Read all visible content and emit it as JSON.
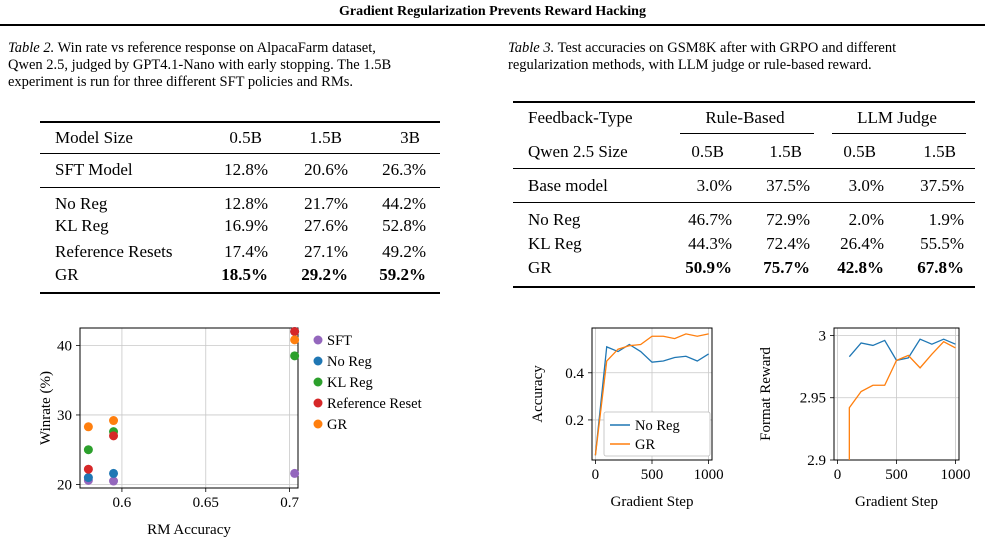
{
  "header": {
    "title": "Gradient Regularization Prevents Reward Hacking"
  },
  "table2": {
    "label": "Table 2.",
    "caption_rest": "Win rate vs reference response on AlpacaFarm dataset,",
    "caption_line2": "Qwen 2.5, judged by GPT4.1-Nano with early stopping. The 1.5B",
    "caption_line3": "experiment is run for three different SFT policies and RMs.",
    "head": [
      "Model Size",
      "0.5B",
      "1.5B",
      "3B"
    ],
    "sft": [
      "SFT Model",
      "12.8%",
      "20.6%",
      "26.3%"
    ],
    "rows": [
      [
        "No Reg",
        "12.8%",
        "21.7%",
        "44.2%"
      ],
      [
        "KL Reg",
        "16.9%",
        "27.6%",
        "52.8%"
      ],
      [
        "Reference Resets",
        "17.4%",
        "27.1%",
        "49.2%"
      ],
      [
        "GR",
        "18.5%",
        "29.2%",
        "59.2%"
      ]
    ]
  },
  "table3": {
    "label": "Table 3.",
    "caption_rest": "Test accuracies on GSM8K after with GRPO and different",
    "caption_line2": "regularization methods, with LLM judge or rule-based reward.",
    "group_head": [
      "Feedback-Type",
      "Rule-Based",
      "LLM Judge"
    ],
    "sub_head": [
      "Qwen 2.5 Size",
      "0.5B",
      "1.5B",
      "0.5B",
      "1.5B"
    ],
    "base": [
      "Base model",
      "3.0%",
      "37.5%",
      "3.0%",
      "37.5%"
    ],
    "rows": [
      [
        "No Reg",
        "46.7%",
        "72.9%",
        "2.0%",
        "1.9%"
      ],
      [
        "KL Reg",
        "44.3%",
        "72.4%",
        "26.4%",
        "55.5%"
      ],
      [
        "GR",
        "50.9%",
        "75.7%",
        "42.8%",
        "67.8%"
      ]
    ]
  },
  "chart_data": [
    {
      "type": "scatter",
      "xlabel": "RM Accuracy",
      "ylabel": "Winrate (%)",
      "xlim": [
        0.575,
        0.705
      ],
      "ylim": [
        19.5,
        42.5
      ],
      "xticks": [
        0.6,
        0.65,
        0.7
      ],
      "xtick_labels": [
        "0.6",
        "0.65",
        "0.7"
      ],
      "yticks": [
        20,
        30,
        40
      ],
      "ytick_labels": [
        "20",
        "30",
        "40"
      ],
      "grid": true,
      "legend": "right",
      "series": [
        {
          "name": "SFT",
          "color": "#9467bd",
          "points": [
            [
              0.58,
              20.6
            ],
            [
              0.595,
              20.5
            ],
            [
              0.703,
              21.6
            ]
          ]
        },
        {
          "name": "No Reg",
          "color": "#1f77b4",
          "points": [
            [
              0.58,
              21.0
            ],
            [
              0.595,
              21.6
            ],
            [
              0.703,
              42.0
            ]
          ]
        },
        {
          "name": "KL Reg",
          "color": "#2ca02c",
          "points": [
            [
              0.58,
              25.0
            ],
            [
              0.595,
              27.6
            ],
            [
              0.703,
              38.5
            ]
          ]
        },
        {
          "name": "Reference Reset",
          "color": "#d62728",
          "points": [
            [
              0.58,
              22.2
            ],
            [
              0.595,
              27.0
            ],
            [
              0.703,
              42.0
            ]
          ]
        },
        {
          "name": "GR",
          "color": "#ff7f0e",
          "points": [
            [
              0.58,
              28.3
            ],
            [
              0.595,
              29.2
            ],
            [
              0.703,
              40.8
            ]
          ]
        }
      ]
    },
    {
      "type": "line",
      "xlabel": "Gradient Step",
      "ylabel": "Accuracy",
      "xlim": [
        -30,
        1030
      ],
      "ylim": [
        0.03,
        0.59
      ],
      "xticks": [
        0,
        500,
        1000
      ],
      "xtick_labels": [
        "0",
        "500",
        "1000"
      ],
      "yticks": [
        0.2,
        0.4
      ],
      "ytick_labels": [
        "0.2",
        "0.4"
      ],
      "grid": true,
      "legend": "bottom-right",
      "series": [
        {
          "name": "No Reg",
          "color": "#1f77b4",
          "x": [
            0,
            100,
            200,
            300,
            400,
            500,
            600,
            700,
            800,
            900,
            1000
          ],
          "y": [
            0.05,
            0.51,
            0.49,
            0.52,
            0.49,
            0.445,
            0.45,
            0.465,
            0.47,
            0.45,
            0.48
          ]
        },
        {
          "name": "GR",
          "color": "#ff7f0e",
          "x": [
            0,
            100,
            200,
            300,
            400,
            500,
            600,
            700,
            800,
            900,
            1000
          ],
          "y": [
            0.05,
            0.45,
            0.5,
            0.515,
            0.52,
            0.555,
            0.555,
            0.545,
            0.565,
            0.555,
            0.565
          ]
        }
      ]
    },
    {
      "type": "line",
      "xlabel": "Gradient Step",
      "ylabel": "Format Reward",
      "xlim": [
        -30,
        1030
      ],
      "ylim": [
        2.9,
        3.006
      ],
      "xticks": [
        0,
        500,
        1000
      ],
      "xtick_labels": [
        "0",
        "500",
        "1000"
      ],
      "yticks": [
        2.9,
        2.95,
        3.0
      ],
      "ytick_labels": [
        "2.9",
        "2.95",
        "3"
      ],
      "grid": true,
      "series": [
        {
          "name": "No Reg",
          "color": "#1f77b4",
          "x": [
            100,
            200,
            300,
            400,
            500,
            600,
            700,
            800,
            900,
            1000
          ],
          "y": [
            2.983,
            2.994,
            2.992,
            2.996,
            2.98,
            2.982,
            2.997,
            2.993,
            2.997,
            2.993
          ]
        },
        {
          "name": "GR",
          "color": "#ff7f0e",
          "x": [
            100,
            100,
            200,
            300,
            400,
            500,
            600,
            700,
            800,
            900,
            1000
          ],
          "y": [
            2.9,
            2.942,
            2.955,
            2.96,
            2.96,
            2.98,
            2.984,
            2.974,
            2.985,
            2.995,
            2.99
          ]
        }
      ]
    }
  ]
}
